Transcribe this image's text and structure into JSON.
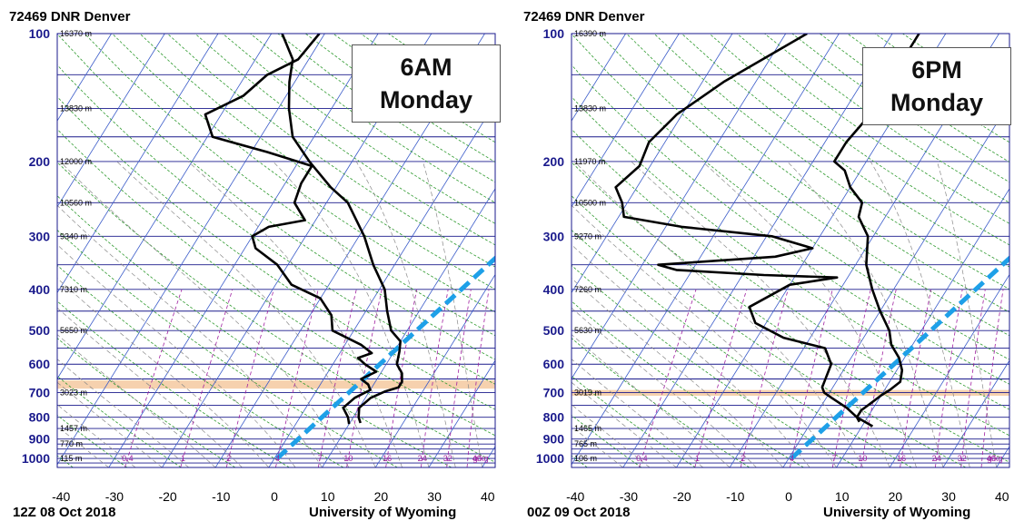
{
  "colors": {
    "isobar": "#1a1a8c",
    "isotherm": "#3a5bc9",
    "dry_adiabat": "#2f9a2f",
    "moist_adiabat": "#8a8a8a",
    "mixing_ratio": "#a020a0",
    "sounding": "#000000",
    "dashed_line": "#1ea0e8",
    "band": "#f5c9a0"
  },
  "chart_data": [
    {
      "type": "line",
      "title": "72469 DNR Denver",
      "annotation": "6AM\nMonday",
      "annotation_lines": [
        "6AM",
        "Monday"
      ],
      "footer_left": "12Z 08 Oct 2018",
      "footer_right": "University of Wyoming",
      "x_ticks": [
        "-40",
        "-30",
        "-20",
        "-10",
        "0",
        "10",
        "20",
        "30",
        "40"
      ],
      "xlim": [
        -40,
        45
      ],
      "pressure_ticks": [
        "100",
        "200",
        "300",
        "400",
        "500",
        "600",
        "700",
        "800",
        "900",
        "1000"
      ],
      "height_labels": [
        {
          "p": 100,
          "text": "16370 m"
        },
        {
          "p": 150,
          "text": "13830 m"
        },
        {
          "p": 200,
          "text": "12000 m"
        },
        {
          "p": 250,
          "text": "10560 m"
        },
        {
          "p": 300,
          "text": "9340 m"
        },
        {
          "p": 400,
          "text": "7310 m"
        },
        {
          "p": 500,
          "text": "5650 m"
        },
        {
          "p": 700,
          "text": "3023 m"
        },
        {
          "p": 850,
          "text": "1457 m"
        },
        {
          "p": 925,
          "text": "770 m"
        },
        {
          "p": 1000,
          "text": "115 m"
        }
      ],
      "mixing_ratio_labels": [
        "0.4",
        "1",
        "2",
        "4",
        "7",
        "10",
        "16",
        "24",
        "32",
        "40",
        "g/kg"
      ],
      "band_pressure": [
        655,
        685
      ],
      "dashed_line": [
        {
          "t": 0.5,
          "p": 1000
        },
        {
          "t": 19,
          "p": 320
        }
      ],
      "temperature": [
        {
          "p": 825,
          "t": 12
        },
        {
          "p": 800,
          "t": 11
        },
        {
          "p": 760,
          "t": 10
        },
        {
          "p": 720,
          "t": 11
        },
        {
          "p": 695,
          "t": 13
        },
        {
          "p": 680,
          "t": 15
        },
        {
          "p": 660,
          "t": 15
        },
        {
          "p": 630,
          "t": 14
        },
        {
          "p": 600,
          "t": 12
        },
        {
          "p": 560,
          "t": 11
        },
        {
          "p": 530,
          "t": 10
        },
        {
          "p": 500,
          "t": 7
        },
        {
          "p": 450,
          "t": 4
        },
        {
          "p": 400,
          "t": 1
        },
        {
          "p": 350,
          "t": -4
        },
        {
          "p": 300,
          "t": -9
        },
        {
          "p": 250,
          "t": -16
        },
        {
          "p": 230,
          "t": -21
        },
        {
          "p": 200,
          "t": -28
        },
        {
          "p": 175,
          "t": -34
        },
        {
          "p": 150,
          "t": -38
        },
        {
          "p": 130,
          "t": -41
        },
        {
          "p": 115,
          "t": -43
        },
        {
          "p": 100,
          "t": -48
        }
      ],
      "dewpoint": [
        {
          "p": 830,
          "t": 10
        },
        {
          "p": 800,
          "t": 9
        },
        {
          "p": 760,
          "t": 7
        },
        {
          "p": 720,
          "t": 8
        },
        {
          "p": 690,
          "t": 10
        },
        {
          "p": 670,
          "t": 9
        },
        {
          "p": 650,
          "t": 7
        },
        {
          "p": 625,
          "t": 9
        },
        {
          "p": 600,
          "t": 6
        },
        {
          "p": 580,
          "t": 4
        },
        {
          "p": 565,
          "t": 6
        },
        {
          "p": 540,
          "t": 3
        },
        {
          "p": 500,
          "t": -4
        },
        {
          "p": 460,
          "t": -6
        },
        {
          "p": 420,
          "t": -10
        },
        {
          "p": 390,
          "t": -17
        },
        {
          "p": 350,
          "t": -22
        },
        {
          "p": 320,
          "t": -28
        },
        {
          "p": 300,
          "t": -30
        },
        {
          "p": 285,
          "t": -28
        },
        {
          "p": 275,
          "t": -22
        },
        {
          "p": 250,
          "t": -26
        },
        {
          "p": 225,
          "t": -27
        },
        {
          "p": 205,
          "t": -27
        },
        {
          "p": 190,
          "t": -37
        },
        {
          "p": 175,
          "t": -49
        },
        {
          "p": 155,
          "t": -53
        },
        {
          "p": 140,
          "t": -48
        },
        {
          "p": 125,
          "t": -46
        },
        {
          "p": 115,
          "t": -42
        },
        {
          "p": 100,
          "t": -41
        }
      ]
    },
    {
      "type": "line",
      "title": "72469 DNR Denver",
      "annotation": "6PM\nMonday",
      "annotation_lines": [
        "6PM",
        "Monday"
      ],
      "footer_left": "00Z 09 Oct 2018",
      "footer_right": "University of Wyoming",
      "x_ticks": [
        "-40",
        "-30",
        "-20",
        "-10",
        "0",
        "10",
        "20",
        "30",
        "40"
      ],
      "xlim": [
        -40,
        45
      ],
      "pressure_ticks": [
        "100",
        "200",
        "300",
        "400",
        "500",
        "600",
        "700",
        "800",
        "900",
        "1000"
      ],
      "height_labels": [
        {
          "p": 100,
          "text": "16390 m"
        },
        {
          "p": 150,
          "text": "13830 m"
        },
        {
          "p": 200,
          "text": "11970 m"
        },
        {
          "p": 250,
          "text": "10500 m"
        },
        {
          "p": 300,
          "text": "9270 m"
        },
        {
          "p": 400,
          "text": "7260 m"
        },
        {
          "p": 500,
          "text": "5630 m"
        },
        {
          "p": 700,
          "text": "3019 m"
        },
        {
          "p": 850,
          "text": "1465 m"
        },
        {
          "p": 925,
          "text": "765 m"
        },
        {
          "p": 1000,
          "text": "106 m"
        }
      ],
      "mixing_ratio_labels": [
        "0.4",
        "1",
        "2",
        "4",
        "7",
        "10",
        "16",
        "24",
        "32",
        "40",
        "g/kg"
      ],
      "band_pressure": [
        690,
        712
      ],
      "dashed_line": [
        {
          "t": 0.5,
          "p": 1000
        },
        {
          "t": 19,
          "p": 320
        }
      ],
      "temperature": [
        {
          "p": 820,
          "t": 9
        },
        {
          "p": 800,
          "t": 8
        },
        {
          "p": 770,
          "t": 8
        },
        {
          "p": 740,
          "t": 9
        },
        {
          "p": 710,
          "t": 10
        },
        {
          "p": 690,
          "t": 11
        },
        {
          "p": 660,
          "t": 12
        },
        {
          "p": 620,
          "t": 11
        },
        {
          "p": 580,
          "t": 9
        },
        {
          "p": 540,
          "t": 6
        },
        {
          "p": 500,
          "t": 4
        },
        {
          "p": 450,
          "t": 0
        },
        {
          "p": 400,
          "t": -4
        },
        {
          "p": 350,
          "t": -8
        },
        {
          "p": 300,
          "t": -11
        },
        {
          "p": 270,
          "t": -15
        },
        {
          "p": 250,
          "t": -16
        },
        {
          "p": 230,
          "t": -20
        },
        {
          "p": 210,
          "t": -23
        },
        {
          "p": 200,
          "t": -26
        },
        {
          "p": 180,
          "t": -26
        },
        {
          "p": 160,
          "t": -25
        },
        {
          "p": 130,
          "t": -25
        },
        {
          "p": 100,
          "t": -25
        }
      ],
      "dewpoint": [
        {
          "p": 840,
          "t": 12
        },
        {
          "p": 800,
          "t": 8
        },
        {
          "p": 760,
          "t": 5
        },
        {
          "p": 720,
          "t": 1
        },
        {
          "p": 700,
          "t": -1
        },
        {
          "p": 680,
          "t": -2
        },
        {
          "p": 600,
          "t": -3
        },
        {
          "p": 550,
          "t": -6
        },
        {
          "p": 520,
          "t": -15
        },
        {
          "p": 480,
          "t": -22
        },
        {
          "p": 440,
          "t": -25
        },
        {
          "p": 390,
          "t": -20
        },
        {
          "p": 375,
          "t": -12
        },
        {
          "p": 370,
          "t": -26
        },
        {
          "p": 360,
          "t": -43
        },
        {
          "p": 350,
          "t": -47
        },
        {
          "p": 335,
          "t": -26
        },
        {
          "p": 320,
          "t": -20
        },
        {
          "p": 300,
          "t": -29
        },
        {
          "p": 285,
          "t": -47
        },
        {
          "p": 270,
          "t": -59
        },
        {
          "p": 250,
          "t": -61
        },
        {
          "p": 230,
          "t": -64
        },
        {
          "p": 205,
          "t": -62
        },
        {
          "p": 180,
          "t": -63
        },
        {
          "p": 155,
          "t": -61
        },
        {
          "p": 130,
          "t": -56
        },
        {
          "p": 100,
          "t": -46
        }
      ]
    }
  ]
}
